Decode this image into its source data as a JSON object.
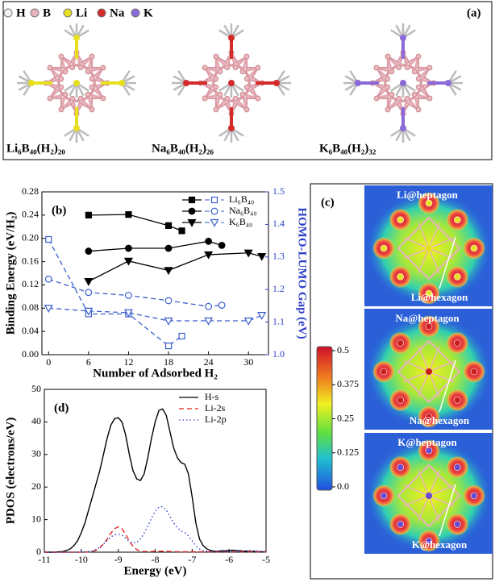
{
  "panel_a": {
    "label": "(a)",
    "legend": [
      {
        "label": "H",
        "color": "#f2f2f2"
      },
      {
        "label": "B",
        "color": "#e8b4bc"
      },
      {
        "label": "Li",
        "color": "#e6e020"
      },
      {
        "label": "Na",
        "color": "#d42a2a"
      },
      {
        "label": "K",
        "color": "#8a6ad8"
      }
    ],
    "structures": [
      {
        "caption": "Li₆B₄₀(H₂)₂₀",
        "color": "#e6e020"
      },
      {
        "caption": "Na₆B₄₀(H₂)₂₆",
        "color": "#d42a2a"
      },
      {
        "caption": "K₆B₄₀(H₂)₃₂",
        "color": "#8a6ad8"
      }
    ]
  },
  "chart_data": [
    {
      "type": "line",
      "label": "(b)",
      "xlabel": "Number of Adsorbed H₂",
      "ylabel": "Binding Energy (eV/H₂)",
      "y2label": "HOMO-LUMO Gap (eV)",
      "xlim": [
        -1,
        33
      ],
      "xticks": [
        0,
        6,
        12,
        18,
        24,
        30
      ],
      "ylim": [
        0,
        0.28
      ],
      "yticks": [
        {
          "value": 0,
          "label": "0.00"
        },
        0.04,
        0.08,
        0.12,
        0.16,
        {
          "value": 0.2,
          "label": "0.20"
        },
        0.24,
        0.28
      ],
      "y2lim": [
        1,
        1.5
      ],
      "y2ticks": [
        {
          "value": 1,
          "label": "1.0"
        },
        1.1,
        1.2,
        1.3,
        1.4,
        1.5
      ],
      "series": [
        {
          "name": "Li₆B₄₀",
          "marker": "square",
          "color": "#000000",
          "x": [
            6,
            12,
            18,
            20
          ],
          "values": [
            0.24,
            0.241,
            0.222,
            0.213
          ]
        },
        {
          "name": "Na₆B₄₀",
          "marker": "circle",
          "color": "#000000",
          "x": [
            6,
            12,
            18,
            24,
            26
          ],
          "values": [
            0.178,
            0.183,
            0.183,
            0.195,
            0.188
          ]
        },
        {
          "name": "K₆B₄₀",
          "marker": "triangle-down",
          "color": "#000000",
          "x": [
            6,
            12,
            18,
            24,
            30,
            32
          ],
          "values": [
            0.126,
            0.161,
            0.145,
            0.172,
            0.175,
            0.169
          ]
        },
        {
          "axis": "y2",
          "marker": "square",
          "color": "#3a5fcd",
          "dash": "6 4",
          "open": true,
          "x": [
            0,
            6,
            12,
            18,
            20
          ],
          "values": [
            1.354,
            1.125,
            1.125,
            1.027,
            1.057
          ]
        },
        {
          "axis": "y2",
          "marker": "circle",
          "color": "#3a5fcd",
          "dash": "6 4",
          "open": true,
          "x": [
            0,
            6,
            12,
            18,
            24,
            26
          ],
          "values": [
            1.232,
            1.191,
            1.182,
            1.166,
            1.148,
            1.152
          ]
        },
        {
          "axis": "y2",
          "marker": "triangle-down",
          "color": "#3a5fcd",
          "dash": "6 4",
          "open": true,
          "x": [
            0,
            6,
            12,
            18,
            24,
            30,
            32
          ],
          "values": [
            1.143,
            1.134,
            1.129,
            1.104,
            1.104,
            1.104,
            1.121
          ]
        }
      ]
    },
    {
      "type": "line",
      "label": "(d)",
      "xlabel": "Energy (eV)",
      "ylabel": "PDOS (electrons/eV)",
      "xlim": [
        -11,
        -5
      ],
      "xticks": [
        -11,
        -10,
        -9,
        -8,
        -7,
        -6,
        -5
      ],
      "ylim": [
        0,
        50
      ],
      "yticks": [
        0,
        10,
        20,
        30,
        40,
        50
      ],
      "x": [
        -11,
        -10.9,
        -10.8,
        -10.7,
        -10.6,
        -10.5,
        -10.4,
        -10.3,
        -10.2,
        -10.1,
        -10,
        -9.9,
        -9.8,
        -9.7,
        -9.6,
        -9.5,
        -9.4,
        -9.3,
        -9.2,
        -9.1,
        -9,
        -8.9,
        -8.8,
        -8.7,
        -8.6,
        -8.5,
        -8.4,
        -8.3,
        -8.2,
        -8.1,
        -8,
        -7.9,
        -7.8,
        -7.7,
        -7.6,
        -7.5,
        -7.4,
        -7.3,
        -7.2,
        -7.1,
        -7,
        -6.9,
        -6.8,
        -6.7,
        -6.6,
        -6.5,
        -6.4,
        -6.3,
        -6.2,
        -6.1,
        -6,
        -5.9,
        -5.8,
        -5.7,
        -5.6,
        -5.5,
        -5.4,
        -5.3,
        -5.2,
        -5.1,
        -5
      ],
      "series": [
        {
          "name": "H-s",
          "color": "#000000",
          "values": [
            0,
            0,
            0,
            0,
            0.1,
            0.2,
            0.5,
            1,
            2,
            3.5,
            6,
            9,
            13,
            17,
            21,
            25,
            30,
            35,
            39,
            41,
            41.3,
            40,
            36,
            30,
            25,
            22.5,
            22,
            24,
            29,
            35,
            40,
            43.5,
            44,
            42,
            37,
            32,
            29,
            27.5,
            27,
            24,
            17,
            9,
            4,
            2,
            1,
            0.5,
            0.3,
            0.3,
            0.4,
            0.4,
            0.5,
            0.6,
            0.5,
            0.4,
            0.3,
            0.3,
            0.2,
            0.2,
            0.2,
            0.1,
            0.1
          ]
        },
        {
          "name": "Li-2s",
          "color": "#e0201c",
          "dash": "6 4",
          "values": [
            0,
            0,
            0,
            0,
            0,
            0,
            0,
            0,
            0,
            0,
            0,
            0,
            0.1,
            0.2,
            0.6,
            1.3,
            2.5,
            4,
            5.8,
            7.2,
            7.8,
            7.2,
            5.5,
            3.5,
            1.8,
            0.8,
            0.3,
            0.2,
            0.2,
            0.2,
            0.3,
            0.3,
            0.3,
            0.3,
            0.2,
            0.2,
            0.1,
            0.1,
            0.1,
            0.1,
            0.1,
            0.1,
            0.1,
            0.1,
            0.1,
            0.1,
            0.1,
            0.1,
            0.1,
            0.1,
            0.1,
            0.1,
            0.1,
            0.1,
            0.1,
            0.1,
            0.1,
            0.1,
            0.1,
            0.1,
            0.1
          ]
        },
        {
          "name": "Li-2p",
          "color": "#2c3fc8",
          "dash": "1.5 3",
          "values": [
            0,
            0,
            0,
            0,
            0,
            0,
            0,
            0,
            0,
            0,
            0.1,
            0.1,
            0.2,
            0.4,
            0.8,
            1.5,
            2.5,
            3.6,
            4.7,
            5.3,
            5.5,
            5.2,
            4.3,
            3.3,
            2.8,
            3,
            4,
            5.8,
            8,
            10.5,
            12.5,
            13.8,
            14,
            13,
            11,
            9,
            7.5,
            6.5,
            6,
            5,
            3.5,
            2,
            1,
            0.5,
            0.3,
            0.2,
            0.2,
            0.2,
            0.2,
            0.2,
            0.2,
            0.3,
            0.3,
            0.3,
            0.4,
            0.5,
            0.5,
            0.4,
            0.3,
            0.2,
            0.2
          ]
        }
      ]
    }
  ],
  "panel_c": {
    "label": "(c)",
    "maps": [
      {
        "top": "Li@heptagon",
        "bottom": "Li@hexagon",
        "color": "#e6e020"
      },
      {
        "top": "Na@heptagon",
        "bottom": "Na@hexagon",
        "color": "#c81e1e"
      },
      {
        "top": "K@heptagon",
        "bottom": "K@hexagon",
        "color": "#6a4ad0"
      }
    ],
    "colorbar": {
      "ylim": [
        0,
        0.5
      ],
      "yticks": [
        {
          "value": 0,
          "label": "0.0"
        },
        0.125,
        0.25,
        0.375,
        0.5
      ]
    }
  }
}
